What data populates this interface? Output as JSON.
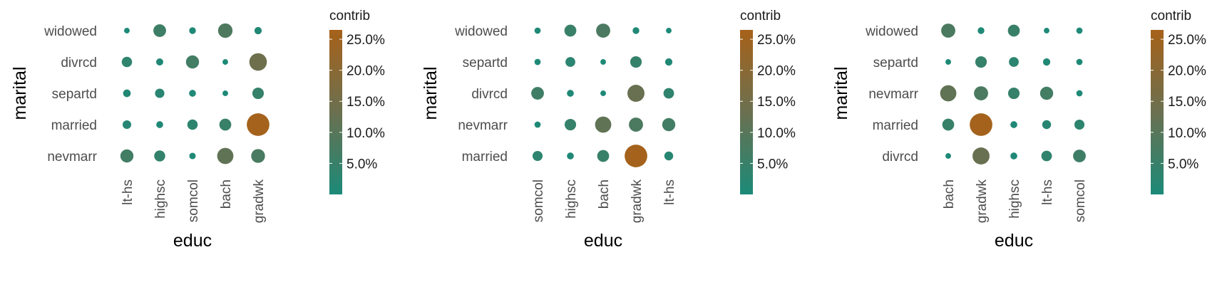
{
  "chart_data": [
    {
      "type": "scatter",
      "xlabel": "educ",
      "ylabel": "marital",
      "x_categories": [
        "lt-hs",
        "highsc",
        "somcol",
        "bach",
        "gradwk"
      ],
      "y_categories": [
        "widowed",
        "divrcd",
        "separtd",
        "married",
        "nevmarr"
      ],
      "legend_title": "contrib",
      "legend_ticks": [
        "25.0%",
        "20.0%",
        "15.0%",
        "10.0%",
        "5.0%"
      ],
      "legend_range": [
        0,
        26.5
      ],
      "colors": {
        "low": "#1b8a78",
        "high": "#a6611a"
      },
      "points": [
        {
          "x": "lt-hs",
          "y": "widowed",
          "value": 0.3
        },
        {
          "x": "highsc",
          "y": "widowed",
          "value": 6.0
        },
        {
          "x": "somcol",
          "y": "widowed",
          "value": 0.7
        },
        {
          "x": "bach",
          "y": "widowed",
          "value": 8.5
        },
        {
          "x": "gradwk",
          "y": "widowed",
          "value": 1.0
        },
        {
          "x": "lt-hs",
          "y": "divrcd",
          "value": 3.3
        },
        {
          "x": "highsc",
          "y": "divrcd",
          "value": 0.9
        },
        {
          "x": "somcol",
          "y": "divrcd",
          "value": 6.5
        },
        {
          "x": "bach",
          "y": "divrcd",
          "value": 0.3
        },
        {
          "x": "gradwk",
          "y": "divrcd",
          "value": 14.0
        },
        {
          "x": "lt-hs",
          "y": "separtd",
          "value": 1.2
        },
        {
          "x": "highsc",
          "y": "separtd",
          "value": 2.4
        },
        {
          "x": "somcol",
          "y": "separtd",
          "value": 0.8
        },
        {
          "x": "bach",
          "y": "separtd",
          "value": 0.3
        },
        {
          "x": "gradwk",
          "y": "separtd",
          "value": 4.5
        },
        {
          "x": "lt-hs",
          "y": "married",
          "value": 1.8
        },
        {
          "x": "highsc",
          "y": "married",
          "value": 0.8
        },
        {
          "x": "somcol",
          "y": "married",
          "value": 3.3
        },
        {
          "x": "bach",
          "y": "married",
          "value": 5.0
        },
        {
          "x": "gradwk",
          "y": "married",
          "value": 26.0
        },
        {
          "x": "lt-hs",
          "y": "nevmarr",
          "value": 6.5
        },
        {
          "x": "highsc",
          "y": "nevmarr",
          "value": 4.0
        },
        {
          "x": "somcol",
          "y": "nevmarr",
          "value": 0.6
        },
        {
          "x": "bach",
          "y": "nevmarr",
          "value": 11.5
        },
        {
          "x": "gradwk",
          "y": "nevmarr",
          "value": 7.5
        }
      ]
    },
    {
      "type": "scatter",
      "xlabel": "educ",
      "ylabel": "marital",
      "x_categories": [
        "somcol",
        "highsc",
        "bach",
        "gradwk",
        "lt-hs"
      ],
      "y_categories": [
        "widowed",
        "separtd",
        "divrcd",
        "nevmarr",
        "married"
      ],
      "legend_title": "contrib",
      "legend_ticks": [
        "25.0%",
        "20.0%",
        "15.0%",
        "10.0%",
        "5.0%"
      ],
      "legend_range": [
        0,
        26.5
      ],
      "colors": {
        "low": "#1b8a78",
        "high": "#a6611a"
      },
      "points": [
        {
          "x": "somcol",
          "y": "widowed",
          "value": 0.5
        },
        {
          "x": "highsc",
          "y": "widowed",
          "value": 5.0
        },
        {
          "x": "bach",
          "y": "widowed",
          "value": 8.0
        },
        {
          "x": "gradwk",
          "y": "widowed",
          "value": 0.7
        },
        {
          "x": "lt-hs",
          "y": "widowed",
          "value": 0.3
        },
        {
          "x": "somcol",
          "y": "separtd",
          "value": 0.5
        },
        {
          "x": "highsc",
          "y": "separtd",
          "value": 2.8
        },
        {
          "x": "bach",
          "y": "separtd",
          "value": 0.3
        },
        {
          "x": "gradwk",
          "y": "separtd",
          "value": 4.5
        },
        {
          "x": "lt-hs",
          "y": "separtd",
          "value": 1.0
        },
        {
          "x": "somcol",
          "y": "divrcd",
          "value": 6.0
        },
        {
          "x": "highsc",
          "y": "divrcd",
          "value": 0.8
        },
        {
          "x": "bach",
          "y": "divrcd",
          "value": 0.3
        },
        {
          "x": "gradwk",
          "y": "divrcd",
          "value": 13.0
        },
        {
          "x": "lt-hs",
          "y": "divrcd",
          "value": 3.5
        },
        {
          "x": "somcol",
          "y": "nevmarr",
          "value": 0.5
        },
        {
          "x": "highsc",
          "y": "nevmarr",
          "value": 4.5
        },
        {
          "x": "bach",
          "y": "nevmarr",
          "value": 11.5
        },
        {
          "x": "gradwk",
          "y": "nevmarr",
          "value": 8.0
        },
        {
          "x": "lt-hs",
          "y": "nevmarr",
          "value": 6.5
        },
        {
          "x": "somcol",
          "y": "married",
          "value": 3.0
        },
        {
          "x": "highsc",
          "y": "married",
          "value": 0.8
        },
        {
          "x": "bach",
          "y": "married",
          "value": 5.0
        },
        {
          "x": "gradwk",
          "y": "married",
          "value": 26.0
        },
        {
          "x": "lt-hs",
          "y": "married",
          "value": 2.0
        }
      ]
    },
    {
      "type": "scatter",
      "xlabel": "educ",
      "ylabel": "marital",
      "x_categories": [
        "bach",
        "gradwk",
        "highsc",
        "lt-hs",
        "somcol"
      ],
      "y_categories": [
        "widowed",
        "separtd",
        "nevmarr",
        "married",
        "divrcd"
      ],
      "legend_title": "contrib",
      "legend_ticks": [
        "25.0%",
        "20.0%",
        "15.0%",
        "10.0%",
        "5.0%"
      ],
      "legend_range": [
        0,
        26.5
      ],
      "colors": {
        "low": "#1b8a78",
        "high": "#a6611a"
      },
      "points": [
        {
          "x": "bach",
          "y": "widowed",
          "value": 8.0
        },
        {
          "x": "gradwk",
          "y": "widowed",
          "value": 0.7
        },
        {
          "x": "highsc",
          "y": "widowed",
          "value": 5.0
        },
        {
          "x": "lt-hs",
          "y": "widowed",
          "value": 0.3
        },
        {
          "x": "somcol",
          "y": "widowed",
          "value": 0.5
        },
        {
          "x": "bach",
          "y": "separtd",
          "value": 0.3
        },
        {
          "x": "gradwk",
          "y": "separtd",
          "value": 4.5
        },
        {
          "x": "highsc",
          "y": "separtd",
          "value": 2.8
        },
        {
          "x": "lt-hs",
          "y": "separtd",
          "value": 1.0
        },
        {
          "x": "somcol",
          "y": "separtd",
          "value": 0.5
        },
        {
          "x": "bach",
          "y": "nevmarr",
          "value": 11.5
        },
        {
          "x": "gradwk",
          "y": "nevmarr",
          "value": 8.0
        },
        {
          "x": "highsc",
          "y": "nevmarr",
          "value": 4.5
        },
        {
          "x": "lt-hs",
          "y": "nevmarr",
          "value": 6.5
        },
        {
          "x": "somcol",
          "y": "nevmarr",
          "value": 0.5
        },
        {
          "x": "bach",
          "y": "married",
          "value": 5.0
        },
        {
          "x": "gradwk",
          "y": "married",
          "value": 26.0
        },
        {
          "x": "highsc",
          "y": "married",
          "value": 0.8
        },
        {
          "x": "lt-hs",
          "y": "married",
          "value": 2.0
        },
        {
          "x": "somcol",
          "y": "married",
          "value": 3.0
        },
        {
          "x": "bach",
          "y": "divrcd",
          "value": 0.3
        },
        {
          "x": "gradwk",
          "y": "divrcd",
          "value": 13.0
        },
        {
          "x": "highsc",
          "y": "divrcd",
          "value": 0.8
        },
        {
          "x": "lt-hs",
          "y": "divrcd",
          "value": 3.5
        },
        {
          "x": "somcol",
          "y": "divrcd",
          "value": 6.0
        }
      ]
    }
  ]
}
